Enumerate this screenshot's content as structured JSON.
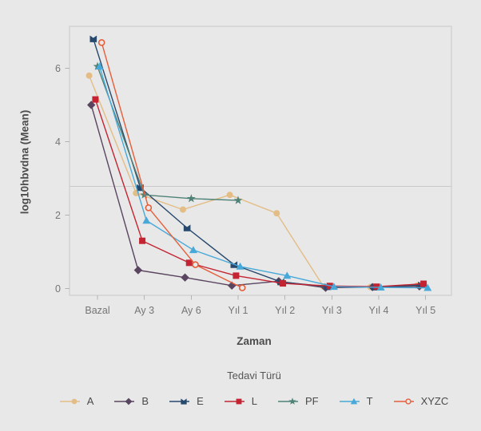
{
  "chart_data": {
    "type": "line",
    "title": "",
    "xlabel": "Zaman",
    "ylabel": "log10hbvdna (Mean)",
    "legend_title": "Tedavi Türü",
    "legend_position": "bottom",
    "grid": false,
    "categories": [
      "Bazal",
      "Ay 3",
      "Ay 6",
      "Yıl 1",
      "Yıl 2",
      "Yıl 3",
      "Yıl 4",
      "Yıl 5"
    ],
    "y_ticks": [
      0,
      2,
      4,
      6
    ],
    "ylim": [
      0,
      7.15
    ],
    "reference_line_y": 2.78,
    "series": [
      {
        "name": "A",
        "marker": "circle",
        "color": "#e3bd85",
        "values": [
          5.8,
          2.6,
          2.15,
          2.55,
          2.05,
          0.05,
          0.04,
          0.08
        ]
      },
      {
        "name": "B",
        "marker": "diamond",
        "color": "#5a4560",
        "values": [
          5.0,
          0.5,
          0.3,
          0.08,
          0.2,
          0.02,
          0.04,
          0.06
        ]
      },
      {
        "name": "E",
        "marker": "banner-square",
        "color": "#27496d",
        "values": [
          6.8,
          2.75,
          1.65,
          0.65,
          0.18,
          0.05,
          0.04,
          0.1
        ]
      },
      {
        "name": "L",
        "marker": "square",
        "color": "#c42432",
        "values": [
          5.15,
          1.3,
          0.7,
          0.35,
          0.14,
          0.07,
          0.05,
          0.13
        ]
      },
      {
        "name": "PF",
        "marker": "star",
        "color": "#4f8277",
        "values": [
          6.05,
          2.55,
          2.45,
          2.4,
          null,
          null,
          null,
          null
        ]
      },
      {
        "name": "T",
        "marker": "triangle",
        "color": "#47a9d9",
        "values": [
          6.05,
          1.85,
          1.05,
          0.6,
          0.35,
          0.05,
          0.03,
          0.02
        ]
      },
      {
        "name": "XYZC",
        "marker": "open-circle",
        "color": "#e55e3a",
        "values": [
          6.7,
          2.2,
          0.65,
          0.02,
          null,
          null,
          null,
          null
        ]
      }
    ]
  },
  "colors": {
    "background": "#e8e8e8",
    "plot_border": "#c9c9c9",
    "tick": "#b3b3b3",
    "axis_title_text": "#4d4d4d",
    "tick_label_text": "#757575",
    "legend_text": "#4a4a4a"
  }
}
